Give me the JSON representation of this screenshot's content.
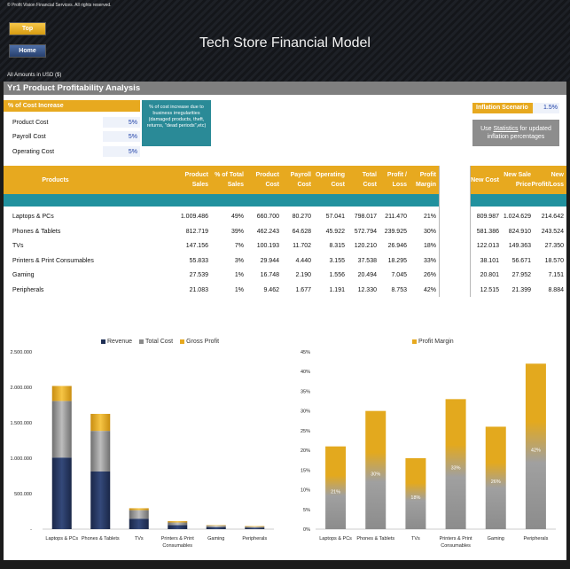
{
  "copyright": "© Profit Vision Financial Services. All rights reserved.",
  "nav": {
    "top": "Top",
    "home": "Home"
  },
  "title": "Tech Store Financial Model",
  "amounts_note": "All Amounts in  USD ($)",
  "section_title": "Yr1 Product Profitability Analysis",
  "cost_increase": {
    "header": "% of Cost Increase",
    "rows": [
      {
        "label": "Product Cost",
        "value": "5%"
      },
      {
        "label": "Payroll Cost",
        "value": "5%"
      },
      {
        "label": "Operating Cost",
        "value": "5%"
      }
    ],
    "note": "% of cost increase due to business irregularities (damaged products, theft, returns, \"dead periods\",etc)"
  },
  "inflation": {
    "label": "Inflation Scenario",
    "value": "1.5%",
    "button_prefix": "Use ",
    "button_link": "Statistics",
    "button_suffix": " for updated inflation percentages"
  },
  "table": {
    "headers": [
      "Products",
      "Product Sales",
      "% of Total Sales",
      "Product Cost",
      "Payroll Cost",
      "Operating Cost",
      "Total Cost",
      "Profit / Loss",
      "Profit Margin"
    ],
    "side_headers": [
      "New Cost",
      "New Sale Price",
      "New Profit/Loss"
    ],
    "rows": [
      {
        "product": "Laptops & PCs",
        "sales": "1.009.486",
        "pct": "49%",
        "pcost": "660.700",
        "payroll": "80.270",
        "opcost": "57.041",
        "total": "798.017",
        "profit": "211.470",
        "margin": "21%",
        "newcost": "809.987",
        "newprice": "1.024.629",
        "newprofit": "214.642"
      },
      {
        "product": "Phones & Tablets",
        "sales": "812.719",
        "pct": "39%",
        "pcost": "462.243",
        "payroll": "64.628",
        "opcost": "45.922",
        "total": "572.794",
        "profit": "239.925",
        "margin": "30%",
        "newcost": "581.386",
        "newprice": "824.910",
        "newprofit": "243.524"
      },
      {
        "product": "TVs",
        "sales": "147.156",
        "pct": "7%",
        "pcost": "100.193",
        "payroll": "11.702",
        "opcost": "8.315",
        "total": "120.210",
        "profit": "26.946",
        "margin": "18%",
        "newcost": "122.013",
        "newprice": "149.363",
        "newprofit": "27.350"
      },
      {
        "product": "Printers & Print Consumables",
        "sales": "55.833",
        "pct": "3%",
        "pcost": "29.944",
        "payroll": "4.440",
        "opcost": "3.155",
        "total": "37.538",
        "profit": "18.295",
        "margin": "33%",
        "newcost": "38.101",
        "newprice": "56.671",
        "newprofit": "18.570"
      },
      {
        "product": "Gaming",
        "sales": "27.539",
        "pct": "1%",
        "pcost": "16.748",
        "payroll": "2.190",
        "opcost": "1.556",
        "total": "20.494",
        "profit": "7.045",
        "margin": "26%",
        "newcost": "20.801",
        "newprice": "27.952",
        "newprofit": "7.151"
      },
      {
        "product": "Peripherals",
        "sales": "21.083",
        "pct": "1%",
        "pcost": "9.462",
        "payroll": "1.677",
        "opcost": "1.191",
        "total": "12.330",
        "profit": "8.753",
        "margin": "42%",
        "newcost": "12.515",
        "newprice": "21.399",
        "newprofit": "8.884"
      }
    ]
  },
  "colors": {
    "gold": "#e7a91f",
    "teal": "#21919e",
    "navy": "#1f2f55",
    "gray": "#8a8a8a"
  },
  "chart_data": [
    {
      "type": "bar",
      "stacked": true,
      "categories": [
        "Laptops & PCs",
        "Phones & Tablets",
        "TVs",
        "Printers & Print Consumables",
        "Gaming",
        "Peripherals"
      ],
      "series": [
        {
          "name": "Revenue",
          "values": [
            1009486,
            812719,
            147156,
            55833,
            27539,
            21083
          ]
        },
        {
          "name": "Total Cost",
          "values": [
            798017,
            572794,
            120210,
            37538,
            20494,
            12330
          ]
        },
        {
          "name": "Gross Profit",
          "values": [
            211470,
            239925,
            26946,
            18295,
            7045,
            8753
          ]
        }
      ],
      "ylim": [
        0,
        2500000
      ],
      "yticks": [
        "2.500.000",
        "2.000.000",
        "1.500.000",
        "1.000.000",
        "500.000",
        "-"
      ],
      "legend": "top"
    },
    {
      "type": "bar",
      "categories": [
        "Laptops & PCs",
        "Phones & Tablets",
        "TVs",
        "Printers & Print Consumables",
        "Gaming",
        "Peripherals"
      ],
      "series": [
        {
          "name": "Profit Margin",
          "values": [
            21,
            30,
            18,
            33,
            26,
            42
          ]
        }
      ],
      "data_labels": [
        "21%",
        "30%",
        "18%",
        "33%",
        "26%",
        "42%"
      ],
      "ylim": [
        0,
        45
      ],
      "yticks": [
        "45%",
        "40%",
        "35%",
        "30%",
        "25%",
        "20%",
        "15%",
        "10%",
        "5%",
        "0%"
      ],
      "legend": "top"
    }
  ]
}
